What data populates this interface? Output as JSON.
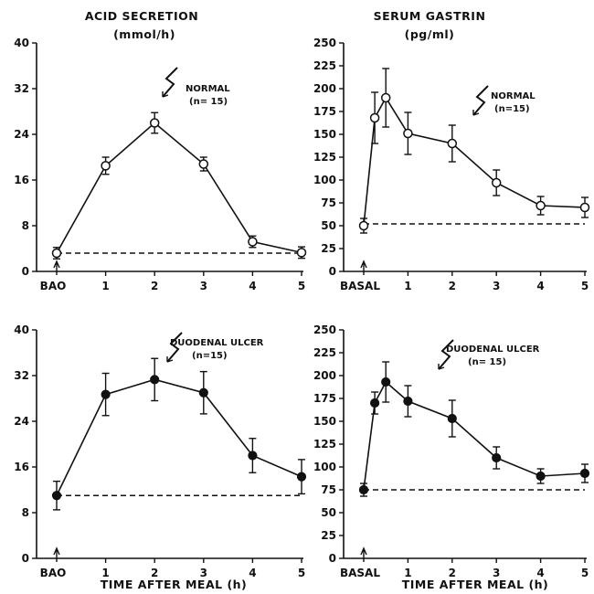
{
  "titles": {
    "acid": "ACID SECRETION",
    "acid_unit": "(mmol/h)",
    "gastrin": "SERUM GASTRIN",
    "gastrin_unit": "(pg/ml)"
  },
  "xlabel": "TIME AFTER MEAL (h)",
  "chart_data": [
    {
      "type": "line",
      "panel": "top-left",
      "title": "ACID SECRETION (mmol/h)",
      "annotation": {
        "label": "NORMAL",
        "n": "(n= 15)"
      },
      "x_tick_labels": [
        "BAO",
        "1",
        "2",
        "3",
        "4",
        "5"
      ],
      "xlim": [
        0,
        5
      ],
      "ylim": [
        0,
        40
      ],
      "y_ticks": [
        0,
        8,
        16,
        24,
        32,
        40
      ],
      "baseline": 3.2,
      "marker": "open",
      "series": [
        {
          "x": [
            0,
            1,
            2,
            3,
            4,
            5
          ],
          "y": [
            3.2,
            18.5,
            26.0,
            18.8,
            5.2,
            3.3
          ],
          "err": [
            1.0,
            1.5,
            1.8,
            1.2,
            1.0,
            1.0
          ]
        }
      ]
    },
    {
      "type": "line",
      "panel": "top-right",
      "title": "SERUM GASTRIN (pg/ml)",
      "annotation": {
        "label": "NORMAL",
        "n": "(n=15)"
      },
      "x_tick_labels": [
        "BASAL",
        "1",
        "2",
        "3",
        "4",
        "5"
      ],
      "xlim": [
        0,
        5
      ],
      "ylim": [
        0,
        250
      ],
      "y_ticks": [
        0,
        25,
        50,
        75,
        100,
        125,
        150,
        175,
        200,
        225,
        250
      ],
      "baseline": 52,
      "marker": "open",
      "series": [
        {
          "x": [
            0,
            0.25,
            0.5,
            1,
            2,
            3,
            4,
            5
          ],
          "y": [
            50,
            168,
            190,
            151,
            140,
            97,
            72,
            70
          ],
          "err": [
            8,
            28,
            32,
            23,
            20,
            14,
            10,
            11
          ]
        }
      ]
    },
    {
      "type": "line",
      "panel": "bottom-left",
      "title": "",
      "annotation": {
        "label": "DUODENAL ULCER",
        "n": "(n=15)"
      },
      "x_tick_labels": [
        "BAO",
        "1",
        "2",
        "3",
        "4",
        "5"
      ],
      "xlim": [
        0,
        5
      ],
      "ylim": [
        0,
        40
      ],
      "y_ticks": [
        0,
        8,
        16,
        24,
        32,
        40
      ],
      "baseline": 11.0,
      "marker": "filled",
      "series": [
        {
          "x": [
            0,
            1,
            2,
            3,
            4,
            5
          ],
          "y": [
            11.0,
            28.7,
            31.3,
            29.0,
            18.0,
            14.3
          ],
          "err": [
            2.5,
            3.7,
            3.7,
            3.7,
            3.0,
            3.0
          ]
        }
      ]
    },
    {
      "type": "line",
      "panel": "bottom-right",
      "title": "",
      "annotation": {
        "label": "DUODENAL ULCER",
        "n": "(n= 15)"
      },
      "x_tick_labels": [
        "BASAL",
        "1",
        "2",
        "3",
        "4",
        "5"
      ],
      "xlim": [
        0,
        5
      ],
      "ylim": [
        0,
        250
      ],
      "y_ticks": [
        0,
        25,
        50,
        75,
        100,
        125,
        150,
        175,
        200,
        225,
        250
      ],
      "baseline": 75,
      "marker": "filled",
      "series": [
        {
          "x": [
            0,
            0.25,
            0.5,
            1,
            2,
            3,
            4,
            5
          ],
          "y": [
            75,
            170,
            193,
            172,
            153,
            110,
            90,
            93
          ],
          "err": [
            7,
            12,
            22,
            17,
            20,
            12,
            8,
            10
          ]
        }
      ]
    }
  ]
}
